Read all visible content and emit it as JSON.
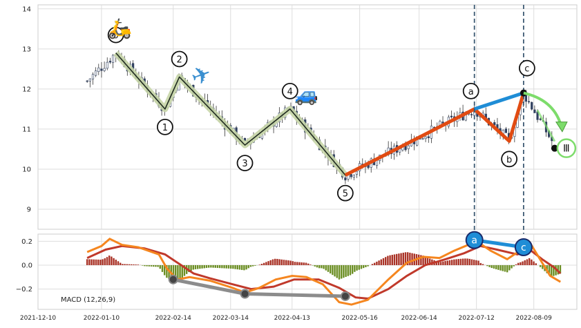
{
  "chart_data": [
    {
      "type": "candlestick",
      "panel": "price",
      "ylim": [
        8.5,
        14.1
      ],
      "y_ticks": [
        "14",
        "13",
        "12",
        "11",
        "10",
        "9"
      ],
      "y_tick_values": [
        14,
        13,
        12,
        11,
        10,
        9
      ],
      "grid": true,
      "colors": {
        "up": "#ffffff",
        "down": "#2f3f5f",
        "wick": "#333333"
      },
      "candles_summary": "daily OHLC 2022-01-03 .. 2022-08-19",
      "key_prices": [
        {
          "date": "2022-01-03",
          "close": 12.2
        },
        {
          "date": "2022-01-17",
          "close": 12.9
        },
        {
          "date": "2022-02-10",
          "close": 11.5
        },
        {
          "date": "2022-02-17",
          "close": 12.3
        },
        {
          "date": "2022-03-21",
          "close": 10.6
        },
        {
          "date": "2022-04-12",
          "close": 11.5
        },
        {
          "date": "2022-05-09",
          "close": 9.85
        },
        {
          "date": "2022-07-11",
          "close": 11.5
        },
        {
          "date": "2022-07-28",
          "close": 10.7
        },
        {
          "date": "2022-08-04",
          "close": 11.9
        },
        {
          "date": "2022-08-19",
          "close": 10.6
        }
      ],
      "wave_labels": [
        {
          "text": "0",
          "date": "2022-01-17",
          "price": 12.9
        },
        {
          "text": "1",
          "date": "2022-02-10",
          "price": 11.5
        },
        {
          "text": "2",
          "date": "2022-02-17",
          "price": 12.3
        },
        {
          "text": "3",
          "date": "2022-03-21",
          "price": 10.6
        },
        {
          "text": "4",
          "date": "2022-04-12",
          "price": 11.5
        },
        {
          "text": "5",
          "date": "2022-05-09",
          "price": 9.85
        },
        {
          "text": "a",
          "date": "2022-07-11",
          "price": 11.5
        },
        {
          "text": "b",
          "date": "2022-07-28",
          "price": 10.7
        },
        {
          "text": "c",
          "date": "2022-08-04",
          "price": 11.9
        }
      ],
      "vertical_lines": [
        "2022-07-11",
        "2022-08-04"
      ]
    },
    {
      "type": "line",
      "panel": "macd",
      "annotation": "MACD (12,26,9)",
      "ylim": [
        -0.37,
        0.26
      ],
      "y_ticks": [
        "0.2",
        "0.0",
        "−0.2"
      ],
      "y_tick_values": [
        0.2,
        0.0,
        -0.2
      ],
      "grid": true,
      "colors": {
        "macd": "#f5861f",
        "signal": "#c0392b",
        "hist_pos": "#a93226",
        "hist_neg": "#6b8e23"
      },
      "macd_points": [
        {
          "date": "2022-01-03",
          "macd": 0.11
        },
        {
          "date": "2022-01-10",
          "macd": 0.16
        },
        {
          "date": "2022-01-14",
          "macd": 0.22
        },
        {
          "date": "2022-01-20",
          "macd": 0.17
        },
        {
          "date": "2022-01-28",
          "macd": 0.15
        },
        {
          "date": "2022-02-07",
          "macd": 0.09
        },
        {
          "date": "2022-02-11",
          "macd": -0.03
        },
        {
          "date": "2022-02-16",
          "macd": -0.12
        },
        {
          "date": "2022-02-22",
          "macd": -0.1
        },
        {
          "date": "2022-03-04",
          "macd": -0.13
        },
        {
          "date": "2022-03-15",
          "macd": -0.19
        },
        {
          "date": "2022-03-21",
          "macd": -0.23
        },
        {
          "date": "2022-03-28",
          "macd": -0.19
        },
        {
          "date": "2022-04-05",
          "macd": -0.12
        },
        {
          "date": "2022-04-13",
          "macd": -0.09
        },
        {
          "date": "2022-04-20",
          "macd": -0.1
        },
        {
          "date": "2022-04-28",
          "macd": -0.16
        },
        {
          "date": "2022-05-06",
          "macd": -0.31
        },
        {
          "date": "2022-05-12",
          "macd": -0.33
        },
        {
          "date": "2022-05-20",
          "macd": -0.29
        },
        {
          "date": "2022-05-30",
          "macd": -0.12
        },
        {
          "date": "2022-06-08",
          "macd": 0.02
        },
        {
          "date": "2022-06-16",
          "macd": 0.07
        },
        {
          "date": "2022-06-24",
          "macd": 0.06
        },
        {
          "date": "2022-07-01",
          "macd": 0.12
        },
        {
          "date": "2022-07-08",
          "macd": 0.17
        },
        {
          "date": "2022-07-13",
          "macd": 0.19
        },
        {
          "date": "2022-07-19",
          "macd": 0.12
        },
        {
          "date": "2022-07-27",
          "macd": 0.05
        },
        {
          "date": "2022-08-03",
          "macd": 0.13
        },
        {
          "date": "2022-08-07",
          "macd": 0.19
        },
        {
          "date": "2022-08-12",
          "macd": 0.05
        },
        {
          "date": "2022-08-17",
          "macd": -0.09
        },
        {
          "date": "2022-08-22",
          "macd": -0.14
        }
      ],
      "signal_points": [
        {
          "date": "2022-01-03",
          "signal": 0.06
        },
        {
          "date": "2022-01-12",
          "signal": 0.13
        },
        {
          "date": "2022-01-20",
          "signal": 0.16
        },
        {
          "date": "2022-01-31",
          "signal": 0.14
        },
        {
          "date": "2022-02-10",
          "signal": 0.09
        },
        {
          "date": "2022-02-17",
          "signal": 0.01
        },
        {
          "date": "2022-02-24",
          "signal": -0.07
        },
        {
          "date": "2022-03-04",
          "signal": -0.11
        },
        {
          "date": "2022-03-15",
          "signal": -0.16
        },
        {
          "date": "2022-03-24",
          "signal": -0.2
        },
        {
          "date": "2022-04-04",
          "signal": -0.18
        },
        {
          "date": "2022-04-14",
          "signal": -0.12
        },
        {
          "date": "2022-04-26",
          "signal": -0.12
        },
        {
          "date": "2022-05-06",
          "signal": -0.19
        },
        {
          "date": "2022-05-14",
          "signal": -0.27
        },
        {
          "date": "2022-05-20",
          "signal": -0.28
        },
        {
          "date": "2022-05-30",
          "signal": -0.2
        },
        {
          "date": "2022-06-08",
          "signal": -0.09
        },
        {
          "date": "2022-06-17",
          "signal": 0.0
        },
        {
          "date": "2022-06-27",
          "signal": 0.05
        },
        {
          "date": "2022-07-06",
          "signal": 0.1
        },
        {
          "date": "2022-07-14",
          "signal": 0.16
        },
        {
          "date": "2022-07-22",
          "signal": 0.13
        },
        {
          "date": "2022-08-01",
          "signal": 0.09
        },
        {
          "date": "2022-08-07",
          "signal": 0.13
        },
        {
          "date": "2022-08-13",
          "signal": 0.05
        },
        {
          "date": "2022-08-19",
          "signal": -0.02
        },
        {
          "date": "2022-08-22",
          "signal": -0.07
        }
      ],
      "gray_line": [
        {
          "date": "2022-02-14",
          "value": -0.12
        },
        {
          "date": "2022-03-21",
          "value": -0.24
        },
        {
          "date": "2022-05-09",
          "value": -0.26
        }
      ],
      "blue_line": [
        {
          "date": "2022-07-11",
          "value": 0.21
        },
        {
          "date": "2022-08-04",
          "value": 0.15
        }
      ],
      "macd_labels": [
        {
          "text": "a",
          "date": "2022-07-11",
          "value": 0.21
        },
        {
          "text": "c",
          "date": "2022-08-04",
          "value": 0.15
        }
      ]
    }
  ],
  "x_axis": {
    "tick_labels": [
      "2021-12-10",
      "2022-01-10",
      "2022-02-14",
      "2022-03-14",
      "2022-04-13",
      "2022-05-16",
      "2022-06-14",
      "2022-07-12",
      "2022-08-09"
    ],
    "tick_dates": [
      "2021-12-10",
      "2022-01-10",
      "2022-02-14",
      "2022-03-14",
      "2022-04-13",
      "2022-05-16",
      "2022-06-14",
      "2022-07-12",
      "2022-08-09"
    ]
  },
  "decorations": {
    "icons": [
      {
        "name": "scooter-icon",
        "glyph": "🛵"
      },
      {
        "name": "airplane-icon",
        "glyph": "✈"
      },
      {
        "name": "car-icon",
        "glyph": "🚙"
      }
    ],
    "projection_label": "Ⅲ",
    "colors": {
      "wave_impulse_fill": "#c8d6a8",
      "wave_impulse_line": "#1f2a1f",
      "wave_orange": "#e14b12",
      "wave_blue": "#1f8dd6",
      "projection_green": "#7ddc6b",
      "vertical_dashed": "#3d5a73",
      "gray_macd_line": "#8c8c8c"
    }
  }
}
